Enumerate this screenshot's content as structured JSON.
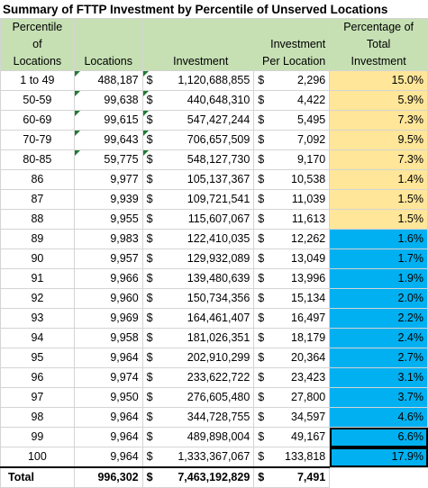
{
  "title": "Summary of FTTP Investment by Percentile of Unserved Locations",
  "headers": {
    "percentile": [
      "Percentile",
      "of",
      "Locations"
    ],
    "locations": "Locations",
    "investment": "Investment",
    "per_location": [
      "Investment",
      "Per Location"
    ],
    "pct_total": [
      "Percentage of",
      "Total",
      "Investment"
    ]
  },
  "currency_symbol": "$",
  "rows": [
    {
      "pct": "1 to 49",
      "locations": "488,187",
      "investment": "1,120,688,855",
      "per_loc": "2,296",
      "share": "15.0%",
      "color": "yellow"
    },
    {
      "pct": "50-59",
      "locations": "99,638",
      "investment": "440,648,310",
      "per_loc": "4,422",
      "share": "5.9%",
      "color": "yellow"
    },
    {
      "pct": "60-69",
      "locations": "99,615",
      "investment": "547,427,244",
      "per_loc": "5,495",
      "share": "7.3%",
      "color": "yellow"
    },
    {
      "pct": "70-79",
      "locations": "99,643",
      "investment": "706,657,509",
      "per_loc": "7,092",
      "share": "9.5%",
      "color": "yellow"
    },
    {
      "pct": "80-85",
      "locations": "59,775",
      "investment": "548,127,730",
      "per_loc": "9,170",
      "share": "7.3%",
      "color": "yellow"
    },
    {
      "pct": "86",
      "locations": "9,977",
      "investment": "105,137,367",
      "per_loc": "10,538",
      "share": "1.4%",
      "color": "yellow"
    },
    {
      "pct": "87",
      "locations": "9,939",
      "investment": "109,721,541",
      "per_loc": "11,039",
      "share": "1.5%",
      "color": "yellow"
    },
    {
      "pct": "88",
      "locations": "9,955",
      "investment": "115,607,067",
      "per_loc": "11,613",
      "share": "1.5%",
      "color": "yellow"
    },
    {
      "pct": "89",
      "locations": "9,983",
      "investment": "122,410,035",
      "per_loc": "12,262",
      "share": "1.6%",
      "color": "blue"
    },
    {
      "pct": "90",
      "locations": "9,957",
      "investment": "129,932,089",
      "per_loc": "13,049",
      "share": "1.7%",
      "color": "blue"
    },
    {
      "pct": "91",
      "locations": "9,966",
      "investment": "139,480,639",
      "per_loc": "13,996",
      "share": "1.9%",
      "color": "blue"
    },
    {
      "pct": "92",
      "locations": "9,960",
      "investment": "150,734,356",
      "per_loc": "15,134",
      "share": "2.0%",
      "color": "blue"
    },
    {
      "pct": "93",
      "locations": "9,969",
      "investment": "164,461,407",
      "per_loc": "16,497",
      "share": "2.2%",
      "color": "blue"
    },
    {
      "pct": "94",
      "locations": "9,958",
      "investment": "181,026,351",
      "per_loc": "18,179",
      "share": "2.4%",
      "color": "blue"
    },
    {
      "pct": "95",
      "locations": "9,964",
      "investment": "202,910,299",
      "per_loc": "20,364",
      "share": "2.7%",
      "color": "blue"
    },
    {
      "pct": "96",
      "locations": "9,974",
      "investment": "233,622,722",
      "per_loc": "23,423",
      "share": "3.1%",
      "color": "blue"
    },
    {
      "pct": "97",
      "locations": "9,950",
      "investment": "276,605,480",
      "per_loc": "27,800",
      "share": "3.7%",
      "color": "blue"
    },
    {
      "pct": "98",
      "locations": "9,964",
      "investment": "344,728,755",
      "per_loc": "34,597",
      "share": "4.6%",
      "color": "blue"
    },
    {
      "pct": "99",
      "locations": "9,964",
      "investment": "489,898,004",
      "per_loc": "49,167",
      "share": "6.6%",
      "color": "blue"
    },
    {
      "pct": "100",
      "locations": "9,964",
      "investment": "1,333,367,067",
      "per_loc": "133,818",
      "share": "17.9%",
      "color": "blue"
    }
  ],
  "total": {
    "label": "Total",
    "locations": "996,302",
    "investment": "7,463,192,829",
    "per_loc": "7,491"
  },
  "colors": {
    "header": "#c6e0b4",
    "yellow": "#ffe699",
    "blue": "#00b0f0",
    "triangle": "#1e7b34"
  }
}
